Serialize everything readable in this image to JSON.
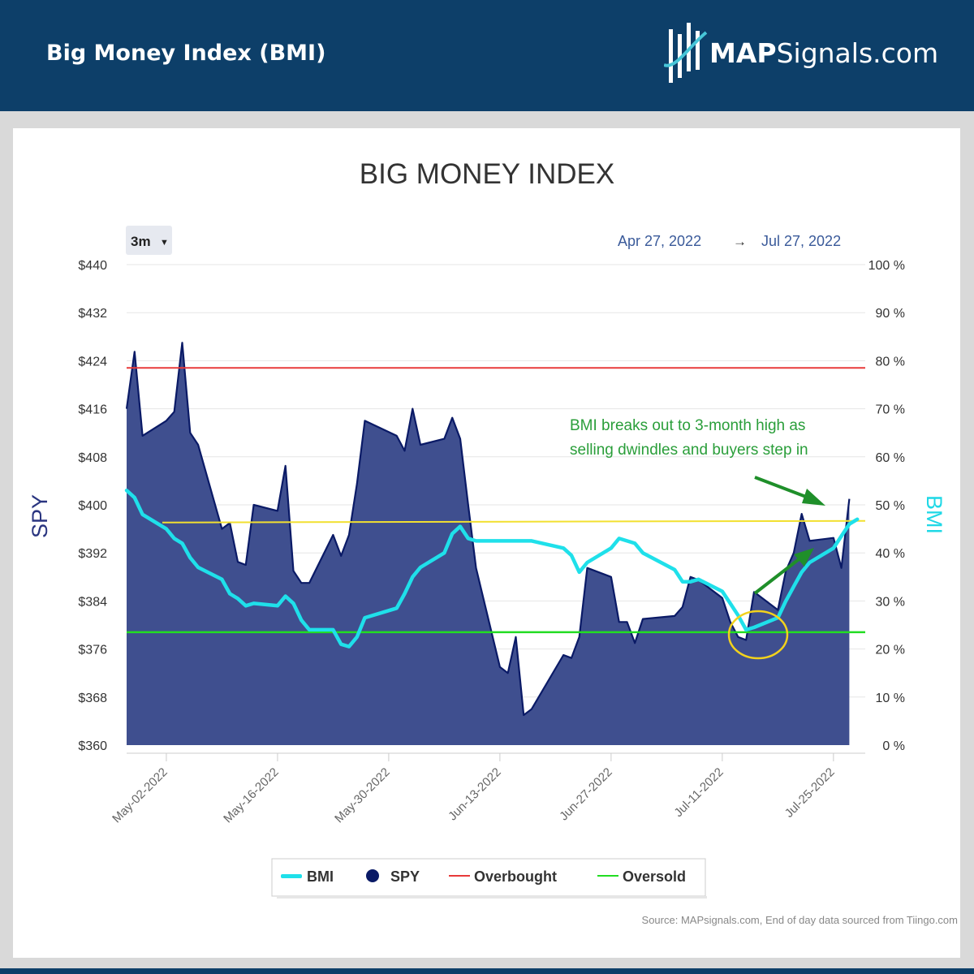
{
  "header": {
    "title": "Big Money Index (BMI)",
    "brand_bold": "MAP",
    "brand_regular": "Signals.com"
  },
  "range_selector": {
    "label": "3m"
  },
  "date_range": {
    "start": "Apr 27, 2022",
    "arrow": "→",
    "end": "Jul 27, 2022"
  },
  "annotation": {
    "line1": "BMI breaks out to 3-month high as",
    "line2": "selling dwindles and buyers step in"
  },
  "source": "Source: MAPsignals.com, End of day data sourced from Tiingo.com",
  "colors": {
    "header_bg": "#0d3f69",
    "spy_fill": "#3f4f8f",
    "spy_line": "#0a1a66",
    "bmi": "#1fe0ea",
    "overbought": "#e83a3a",
    "oversold": "#22dd22",
    "yellow_line": "#f2e030",
    "annotation": "#2a9e3a",
    "date_range": "#3a5a9a"
  },
  "chart_data": {
    "type": "line",
    "title": "BIG MONEY INDEX",
    "ylabel": "SPY",
    "y2label": "BMI",
    "ylim": [
      360,
      440
    ],
    "y2lim": [
      0,
      100
    ],
    "y_ticks": [
      "$440",
      "$432",
      "$424",
      "$416",
      "$408",
      "$400",
      "$392",
      "$384",
      "$376",
      "$368",
      "$360"
    ],
    "y2_ticks": [
      "100 %",
      "90 %",
      "80 %",
      "70 %",
      "60 %",
      "50 %",
      "40 %",
      "30 %",
      "20 %",
      "10 %",
      "0 %"
    ],
    "x_ticks": [
      "May-02-2022",
      "May-16-2022",
      "May-30-2022",
      "Jun-13-2022",
      "Jun-27-2022",
      "Jul-11-2022",
      "Jul-25-2022"
    ],
    "x_start": "2022-04-27",
    "x_end": "2022-07-29",
    "spy": {
      "name": "SPY",
      "dates": [
        "2022-04-27",
        "2022-04-28",
        "2022-04-29",
        "2022-05-02",
        "2022-05-03",
        "2022-05-04",
        "2022-05-05",
        "2022-05-06",
        "2022-05-09",
        "2022-05-10",
        "2022-05-11",
        "2022-05-12",
        "2022-05-13",
        "2022-05-16",
        "2022-05-17",
        "2022-05-18",
        "2022-05-19",
        "2022-05-20",
        "2022-05-23",
        "2022-05-24",
        "2022-05-25",
        "2022-05-26",
        "2022-05-27",
        "2022-05-31",
        "2022-06-01",
        "2022-06-02",
        "2022-06-03",
        "2022-06-06",
        "2022-06-07",
        "2022-06-08",
        "2022-06-09",
        "2022-06-10",
        "2022-06-13",
        "2022-06-14",
        "2022-06-15",
        "2022-06-16",
        "2022-06-17",
        "2022-06-21",
        "2022-06-22",
        "2022-06-23",
        "2022-06-24",
        "2022-06-27",
        "2022-06-28",
        "2022-06-29",
        "2022-06-30",
        "2022-07-01",
        "2022-07-05",
        "2022-07-06",
        "2022-07-07",
        "2022-07-08",
        "2022-07-11",
        "2022-07-12",
        "2022-07-13",
        "2022-07-14",
        "2022-07-15",
        "2022-07-18",
        "2022-07-19",
        "2022-07-20",
        "2022-07-21",
        "2022-07-22",
        "2022-07-25",
        "2022-07-26",
        "2022-07-27"
      ],
      "values": [
        416,
        425.5,
        411.5,
        414,
        415.5,
        427,
        412,
        410,
        396,
        397,
        390.5,
        390,
        400,
        399,
        406.5,
        389,
        387,
        387,
        395,
        391.5,
        395,
        403.5,
        414,
        411.5,
        409,
        416,
        410,
        411,
        414.5,
        411,
        400,
        389.5,
        373,
        372,
        378,
        365,
        366,
        375,
        374.5,
        378,
        389.5,
        388,
        380.5,
        380.5,
        377,
        381,
        381.5,
        383,
        388,
        387.5,
        384.5,
        380.5,
        378,
        377.5,
        385.5,
        382.5,
        389,
        392,
        398.5,
        394,
        394.5,
        389.5,
        401
      ]
    },
    "bmi": {
      "name": "BMI",
      "dates": [
        "2022-04-27",
        "2022-04-28",
        "2022-04-29",
        "2022-05-02",
        "2022-05-03",
        "2022-05-04",
        "2022-05-05",
        "2022-05-06",
        "2022-05-09",
        "2022-05-10",
        "2022-05-11",
        "2022-05-12",
        "2022-05-13",
        "2022-05-16",
        "2022-05-17",
        "2022-05-18",
        "2022-05-19",
        "2022-05-20",
        "2022-05-23",
        "2022-05-24",
        "2022-05-25",
        "2022-05-26",
        "2022-05-27",
        "2022-05-31",
        "2022-06-01",
        "2022-06-02",
        "2022-06-03",
        "2022-06-06",
        "2022-06-07",
        "2022-06-08",
        "2022-06-09",
        "2022-06-10",
        "2022-06-13",
        "2022-06-14",
        "2022-06-15",
        "2022-06-16",
        "2022-06-17",
        "2022-06-21",
        "2022-06-22",
        "2022-06-23",
        "2022-06-24",
        "2022-06-27",
        "2022-06-28",
        "2022-06-29",
        "2022-06-30",
        "2022-07-01",
        "2022-07-05",
        "2022-07-06",
        "2022-07-07",
        "2022-07-08",
        "2022-07-11",
        "2022-07-12",
        "2022-07-13",
        "2022-07-14",
        "2022-07-15",
        "2022-07-18",
        "2022-07-19",
        "2022-07-20",
        "2022-07-21",
        "2022-07-22",
        "2022-07-25",
        "2022-07-26",
        "2022-07-27",
        "2022-07-28"
      ],
      "values": [
        53,
        51.5,
        48,
        45,
        43,
        42,
        39,
        37,
        34.5,
        31.5,
        30.5,
        29,
        29.5,
        29,
        31,
        29.5,
        26,
        24,
        24,
        21,
        20.5,
        22.5,
        26.5,
        28.5,
        31.5,
        35,
        37,
        40,
        44,
        45.5,
        43,
        42.5,
        42.5,
        42.5,
        42.5,
        42.5,
        42.5,
        41,
        39.5,
        36,
        38,
        41,
        43,
        42.5,
        42,
        40,
        36.5,
        34,
        34,
        34.5,
        32,
        29.5,
        27,
        24,
        24.5,
        26.5,
        30,
        33,
        36,
        38,
        41,
        43.5,
        46,
        47
      ]
    },
    "overbought": {
      "name": "Overbought",
      "value": 78.5
    },
    "oversold": {
      "name": "Oversold",
      "value": 23.5
    },
    "yellow_level": 46.5,
    "legend": [
      "BMI",
      "SPY",
      "Overbought",
      "Oversold"
    ],
    "legend_position": "bottom-center",
    "grid": true
  }
}
